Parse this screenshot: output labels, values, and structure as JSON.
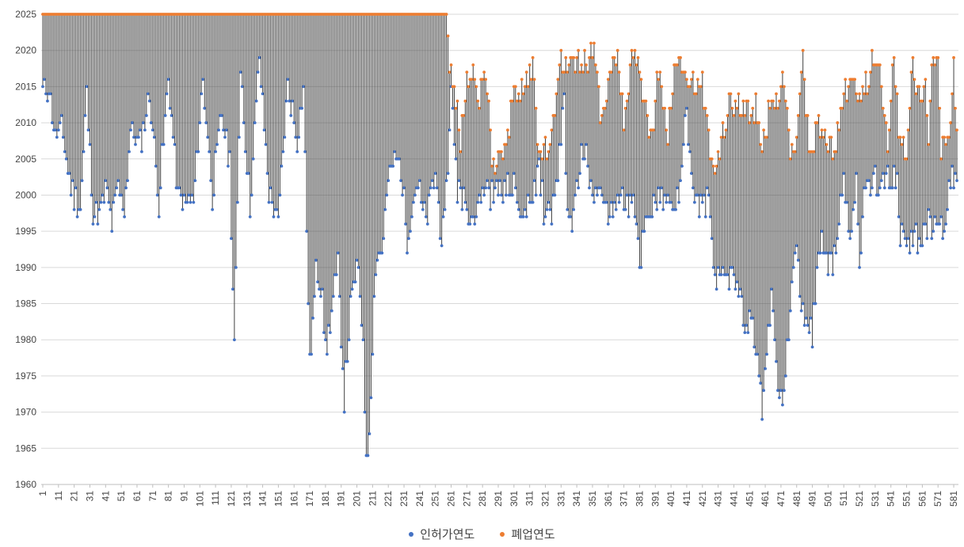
{
  "chart_data": {
    "type": "scatter",
    "title": "",
    "xlabel": "",
    "ylabel": "",
    "ylim": [
      1960,
      2025
    ],
    "y_ticks": [
      "1960",
      "1965",
      "1970",
      "1975",
      "1980",
      "1985",
      "1990",
      "1995",
      "2000",
      "2005",
      "2010",
      "2015",
      "2020",
      "2025"
    ],
    "x_range": [
      1,
      583
    ],
    "x_tick_step": 10,
    "grid": "horizontal",
    "legend_position": "bottom",
    "legend": [
      "인허가연도",
      "폐업연도"
    ],
    "series_colors": {
      "start": "#4472C4",
      "end": "#ED7D31",
      "line": "#404040"
    },
    "series": [
      {
        "name": "인허가연도",
        "note": "approximate anchor readings; intermediate records follow the same regional profile",
        "values": [
          [
            1,
            2014
          ],
          [
            5,
            2015
          ],
          [
            9,
            2008
          ],
          [
            13,
            2009
          ],
          [
            19,
            2001
          ],
          [
            25,
            1998
          ],
          [
            29,
            2014
          ],
          [
            33,
            1998
          ],
          [
            37,
            1997
          ],
          [
            41,
            2001
          ],
          [
            45,
            1996
          ],
          [
            49,
            2001
          ],
          [
            53,
            1998
          ],
          [
            57,
            2009
          ],
          [
            63,
            2007
          ],
          [
            69,
            2014
          ],
          [
            75,
            1999
          ],
          [
            81,
            2016
          ],
          [
            87,
            2000
          ],
          [
            91,
            1999
          ],
          [
            97,
            1999
          ],
          [
            103,
            2016
          ],
          [
            109,
            2000
          ],
          [
            115,
            2011
          ],
          [
            120,
            2005
          ],
          [
            123,
            1979
          ],
          [
            127,
            2018
          ],
          [
            133,
            1998
          ],
          [
            139,
            2019
          ],
          [
            145,
            2000
          ],
          [
            149,
            1998
          ],
          [
            151,
            1996
          ],
          [
            157,
            2015
          ],
          [
            163,
            2008
          ],
          [
            167,
            2015
          ],
          [
            171,
            1976
          ],
          [
            175,
            1989
          ],
          [
            179,
            1988
          ],
          [
            181,
            1978
          ],
          [
            185,
            1984
          ],
          [
            189,
            1990
          ],
          [
            193,
            1972
          ],
          [
            197,
            1984
          ],
          [
            201,
            1990
          ],
          [
            205,
            1981
          ],
          [
            207,
            1962
          ],
          [
            209,
            1968
          ],
          [
            213,
            1991
          ],
          [
            217,
            1992
          ],
          [
            221,
            2002
          ],
          [
            225,
            2005
          ],
          [
            229,
            2004
          ],
          [
            233,
            1994
          ],
          [
            239,
            2002
          ],
          [
            245,
            1996
          ],
          [
            251,
            2003
          ],
          [
            255,
            1994
          ],
          [
            257,
            1996
          ],
          [
            261,
            2014
          ],
          [
            265,
            2001
          ],
          [
            271,
            1998
          ],
          [
            275,
            1997
          ],
          [
            281,
            2001
          ],
          [
            287,
            2000
          ],
          [
            295,
            2001
          ],
          [
            301,
            2001
          ],
          [
            305,
            1997
          ],
          [
            311,
            1998
          ],
          [
            317,
            2004
          ],
          [
            321,
            1996
          ],
          [
            327,
            1999
          ],
          [
            333,
            2012
          ],
          [
            335,
            1997
          ],
          [
            339,
            1997
          ],
          [
            345,
            2007
          ],
          [
            351,
            2000
          ],
          [
            357,
            2000
          ],
          [
            363,
            1997
          ],
          [
            367,
            2000
          ],
          [
            373,
            1999
          ],
          [
            377,
            1998
          ],
          [
            379,
            1996
          ],
          [
            381,
            1990
          ],
          [
            385,
            1997
          ],
          [
            391,
            1999
          ],
          [
            397,
            1999
          ],
          [
            401,
            1998
          ],
          [
            407,
            2000
          ],
          [
            411,
            2012
          ],
          [
            415,
            2000
          ],
          [
            421,
            1998
          ],
          [
            425,
            2000
          ],
          [
            429,
            1987
          ],
          [
            433,
            1990
          ],
          [
            437,
            1989
          ],
          [
            441,
            1988
          ],
          [
            445,
            1988
          ],
          [
            449,
            1980
          ],
          [
            451,
            1985
          ],
          [
            455,
            1979
          ],
          [
            459,
            1970
          ],
          [
            461,
            1977
          ],
          [
            465,
            1986
          ],
          [
            469,
            1974
          ],
          [
            473,
            1972
          ],
          [
            477,
            1984
          ],
          [
            481,
            1993
          ],
          [
            485,
            1983
          ],
          [
            489,
            1982
          ],
          [
            491,
            1981
          ],
          [
            495,
            1993
          ],
          [
            499,
            1993
          ],
          [
            501,
            1990
          ],
          [
            505,
            1991
          ],
          [
            511,
            2002
          ],
          [
            515,
            1993
          ],
          [
            519,
            2002
          ],
          [
            521,
            1990
          ],
          [
            525,
            2002
          ],
          [
            529,
            2002
          ],
          [
            533,
            2002
          ],
          [
            537,
            2002
          ],
          [
            541,
            2002
          ],
          [
            545,
            2002
          ],
          [
            547,
            1994
          ],
          [
            551,
            1994
          ],
          [
            555,
            1994
          ],
          [
            557,
            1994
          ],
          [
            561,
            1994
          ],
          [
            565,
            1996
          ],
          [
            569,
            1995
          ],
          [
            571,
            1996
          ],
          [
            575,
            1995
          ],
          [
            579,
            2003
          ],
          [
            583,
            2002
          ]
        ]
      },
      {
        "name": "폐업연도",
        "note": "records 1-258 close in 2025; remaining closures read approximately",
        "values": [
          [
            1,
            2025
          ],
          [
            258,
            2025
          ],
          [
            260,
            2018
          ],
          [
            263,
            2016
          ],
          [
            267,
            2007
          ],
          [
            271,
            2017
          ],
          [
            275,
            2016
          ],
          [
            279,
            2013
          ],
          [
            283,
            2018
          ],
          [
            287,
            2005
          ],
          [
            291,
            2005
          ],
          [
            297,
            2009
          ],
          [
            303,
            2015
          ],
          [
            307,
            2015
          ],
          [
            313,
            2018
          ],
          [
            317,
            2005
          ],
          [
            325,
            2007
          ],
          [
            331,
            2019
          ],
          [
            335,
            2018
          ],
          [
            339,
            2019
          ],
          [
            343,
            2018
          ],
          [
            347,
            2019
          ],
          [
            353,
            2019
          ],
          [
            357,
            2010
          ],
          [
            363,
            2019
          ],
          [
            367,
            2019
          ],
          [
            371,
            2010
          ],
          [
            375,
            2018
          ],
          [
            379,
            2019
          ],
          [
            383,
            2013
          ],
          [
            389,
            2008
          ],
          [
            393,
            2018
          ],
          [
            399,
            2008
          ],
          [
            403,
            2018
          ],
          [
            409,
            2018
          ],
          [
            413,
            2016
          ],
          [
            417,
            2015
          ],
          [
            421,
            2016
          ],
          [
            427,
            2004
          ],
          [
            431,
            2005
          ],
          [
            437,
            2012
          ],
          [
            443,
            2013
          ],
          [
            449,
            2012
          ],
          [
            455,
            2012
          ],
          [
            459,
            2007
          ],
          [
            463,
            2011
          ],
          [
            469,
            2013
          ],
          [
            473,
            2016
          ],
          [
            477,
            2006
          ],
          [
            481,
            2008
          ],
          [
            485,
            2018
          ],
          [
            489,
            2007
          ],
          [
            495,
            2009
          ],
          [
            501,
            2007
          ],
          [
            505,
            2006
          ],
          [
            511,
            2014
          ],
          [
            517,
            2015
          ],
          [
            521,
            2013
          ],
          [
            527,
            2017
          ],
          [
            531,
            2019
          ],
          [
            535,
            2016
          ],
          [
            539,
            2008
          ],
          [
            543,
            2019
          ],
          [
            547,
            2006
          ],
          [
            551,
            2007
          ],
          [
            555,
            2018
          ],
          [
            559,
            2014
          ],
          [
            563,
            2016
          ],
          [
            565,
            2007
          ],
          [
            567,
            2019
          ],
          [
            571,
            2019
          ],
          [
            573,
            2007
          ],
          [
            577,
            2006
          ],
          [
            579,
            2012
          ],
          [
            581,
            2018
          ],
          [
            583,
            2007
          ]
        ]
      }
    ]
  }
}
